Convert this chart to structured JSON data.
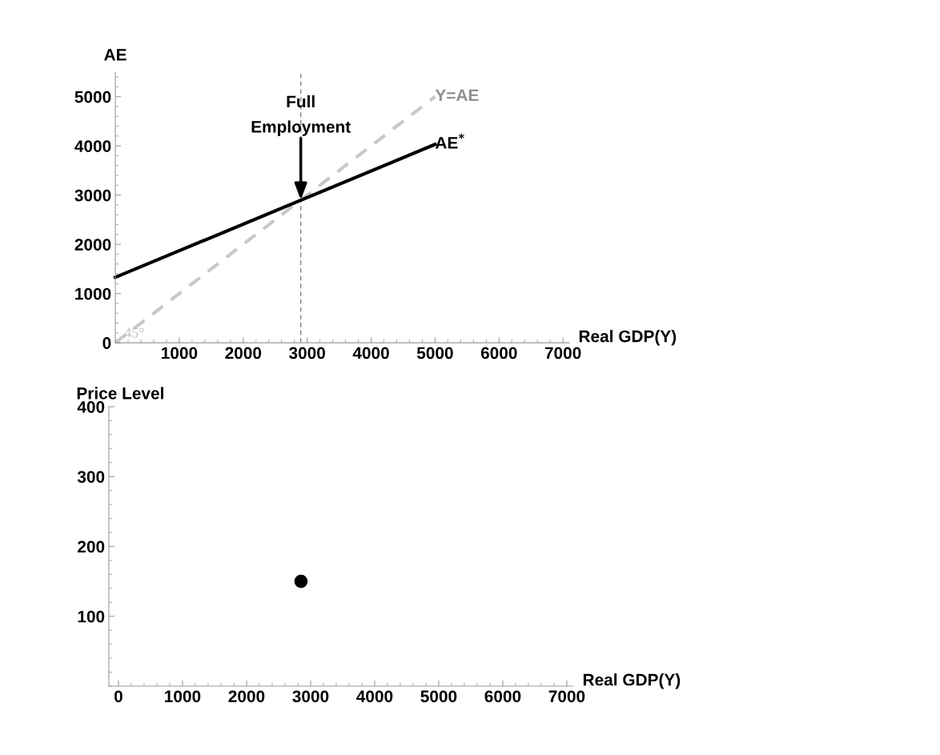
{
  "chart_data": [
    {
      "type": "line",
      "xlabel": "Real GDP(Y)",
      "ylabel": "AE",
      "xlim": [
        0,
        7100
      ],
      "ylim": [
        0,
        5500
      ],
      "xticks": [
        1000,
        2000,
        3000,
        4000,
        5000,
        6000,
        7000
      ],
      "yticks": [
        0,
        1000,
        2000,
        3000,
        4000,
        5000
      ],
      "grid": false,
      "legend": false,
      "marker": "none",
      "series": [
        {
          "name": "Y=AE",
          "color": "#c8c8c8",
          "line_style": "dashed",
          "x": [
            0,
            5000
          ],
          "values": [
            0,
            5000
          ]
        },
        {
          "name": "AE$^{*}$",
          "color": "#000000",
          "line_style": "solid",
          "x": [
            0,
            5000
          ],
          "values": [
            1330,
            4030
          ]
        }
      ],
      "ref_lines": [
        {
          "axis": "x",
          "value": 2900,
          "color": "#808080",
          "line_style": "dashed"
        }
      ],
      "annotations": [
        {
          "text": "Full\nEmployment",
          "x": 2900,
          "y": 2900
        },
        {
          "text": "45°",
          "x": 0,
          "y": 0
        }
      ]
    },
    {
      "type": "scatter",
      "xlabel": "Real GDP(Y)",
      "ylabel": "Price Level",
      "xlim": [
        -150,
        7100
      ],
      "ylim": [
        0,
        400
      ],
      "xticks": [
        0,
        1000,
        2000,
        3000,
        4000,
        5000,
        6000,
        7000
      ],
      "yticks": [
        100,
        200,
        300,
        400
      ],
      "grid": false,
      "legend": false,
      "marker": "circle",
      "series": [
        {
          "color": "#000000",
          "x": [
            2850
          ],
          "values": [
            150
          ]
        }
      ]
    }
  ]
}
